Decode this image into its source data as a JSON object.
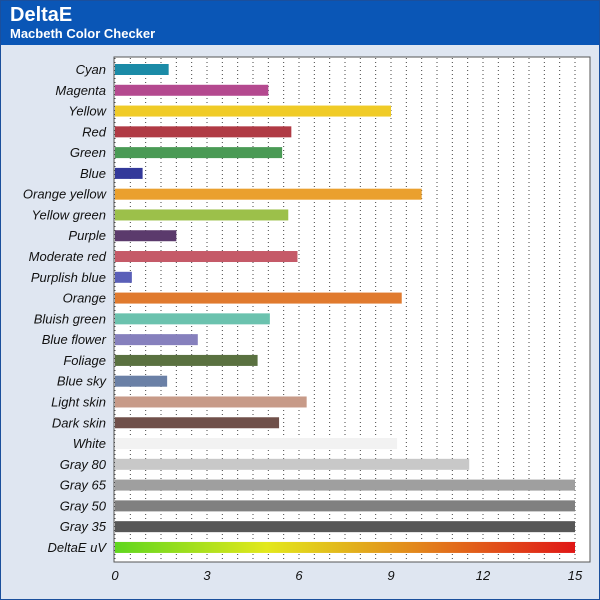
{
  "chart_data": {
    "type": "bar",
    "orientation": "horizontal",
    "title": "DeltaE",
    "subtitle": "Macbeth Color Checker",
    "xlim": [
      0,
      15
    ],
    "xticks": [
      0,
      3,
      6,
      9,
      12,
      15
    ],
    "grid": "vertical dotted",
    "legend": "none",
    "categories": [
      "Cyan",
      "Magenta",
      "Yellow",
      "Red",
      "Green",
      "Blue",
      "Orange yellow",
      "Yellow green",
      "Purple",
      "Moderate red",
      "Purplish blue",
      "Orange",
      "Bluish green",
      "Blue flower",
      "Foliage",
      "Blue sky",
      "Light skin",
      "Dark skin",
      "White",
      "Gray 80",
      "Gray 65",
      "Gray 50",
      "Gray 35",
      "DeltaE uV"
    ],
    "values": [
      1.75,
      5.0,
      9.0,
      5.75,
      5.45,
      0.9,
      10.0,
      5.65,
      2.0,
      5.95,
      0.55,
      9.35,
      5.05,
      2.7,
      4.65,
      1.7,
      6.25,
      5.35,
      9.2,
      11.55,
      15.0,
      15.0,
      15.0,
      15.0
    ],
    "colors": [
      "#1b8ba7",
      "#b4498f",
      "#f0cb27",
      "#b03a44",
      "#4a9a55",
      "#33399a",
      "#eaa02e",
      "#9cc04a",
      "#5b3a6c",
      "#c55a68",
      "#5a5fb8",
      "#e07a2e",
      "#6bc2ae",
      "#8680bd",
      "#5a7140",
      "#6a80a6",
      "#c79a88",
      "#70504a",
      "#f2f2f2",
      "#c8c8c8",
      "#9f9f9f",
      "#808080",
      "#575757",
      "gradient"
    ],
    "gradient_colors": [
      "#5fd61e",
      "#e3e81c",
      "#e2851c",
      "#e01616"
    ]
  }
}
